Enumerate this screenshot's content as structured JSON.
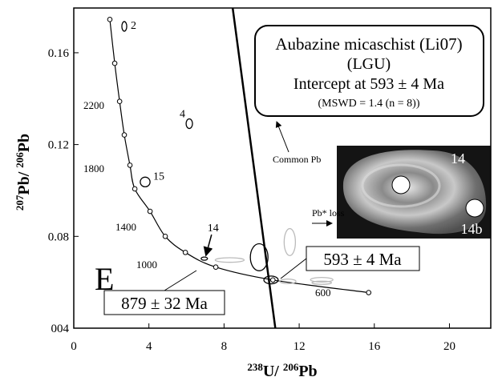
{
  "chart_data": {
    "type": "concordia",
    "xlim": [
      0,
      22.2
    ],
    "ylim": [
      0.04,
      0.1795
    ],
    "xticks": [
      0,
      4,
      8,
      12,
      16,
      20
    ],
    "yticks": [
      {
        "value": 0.04,
        "label": "004"
      },
      0.08,
      0.12,
      0.16
    ],
    "x_label": [
      "238",
      "U/ ",
      "206",
      "Pb"
    ],
    "y_label": [
      "207",
      "Pb/ ",
      "206",
      "Pb"
    ],
    "concordia": {
      "x": [
        1.92,
        2.18,
        2.44,
        2.69,
        2.99,
        3.25,
        4.06,
        4.87,
        5.94,
        7.56,
        10.6,
        15.7
      ],
      "y": [
        0.1745,
        0.1554,
        0.1388,
        0.1242,
        0.111,
        0.1007,
        0.0909,
        0.08,
        0.073,
        0.0666,
        0.061,
        0.0555
      ]
    },
    "concordia_labels": [
      "2200",
      "1800",
      "1400",
      "1000",
      "600"
    ],
    "discordia": {
      "x": [
        8.46,
        10.73
      ],
      "y": [
        0.1795,
        0.04
      ]
    },
    "ellipses": [
      {
        "label": "2",
        "x": 2.69,
        "y": 0.1715,
        "x_err": 0.13,
        "y_err": 0.0021,
        "color": "#000000"
      },
      {
        "label": "4",
        "x": 6.15,
        "y": 0.1291,
        "x_err": 0.17,
        "y_err": 0.0021,
        "color": "#000000"
      },
      {
        "label": "15",
        "x": 3.8,
        "y": 0.1037,
        "x_err": 0.26,
        "y_err": 0.0021,
        "color": "#000000"
      },
      {
        "label": "14",
        "x": 6.95,
        "y": 0.0703,
        "x_err": 0.17,
        "y_err": 0.0007,
        "color": "#000000"
      },
      {
        "label": null,
        "x": 9.87,
        "y": 0.0709,
        "x_err": 0.47,
        "y_err": 0.0059,
        "color": "#000000"
      },
      {
        "label": null,
        "x": 11.5,
        "y": 0.0775,
        "x_err": 0.3,
        "y_err": 0.0059,
        "color": "#bbbbbb"
      },
      {
        "label": null,
        "x": 8.3,
        "y": 0.0697,
        "x_err": 0.77,
        "y_err": 0.001,
        "color": "#bbbbbb"
      },
      {
        "label": null,
        "x": 10.5,
        "y": 0.061,
        "x_err": 0.38,
        "y_err": 0.0017,
        "color": "#000000"
      },
      {
        "label": null,
        "x": 11.4,
        "y": 0.0604,
        "x_err": 0.43,
        "y_err": 0.001,
        "color": "#bbbbbb"
      },
      {
        "label": null,
        "x": 13.2,
        "y": 0.0611,
        "x_err": 0.6,
        "y_err": 0.001,
        "color": "#bbbbbb"
      },
      {
        "label": null,
        "x": 13.2,
        "y": 0.0598,
        "x_err": 0.52,
        "y_err": 0.0007,
        "color": "#bbbbbb"
      }
    ],
    "info_box": [
      "Aubazine micaschist (Li07)",
      "(LGU)",
      "Intercept at 593 ± 4 Ma",
      "(MSWD = 1.4 (n = 8))"
    ],
    "lower_intercept": "593 ± 4 Ma",
    "upper_intercept": "879 ± 32 Ma",
    "common_pb": "Common Pb",
    "pb_loss": "Pb* loss",
    "panel": "E",
    "inset_labels": [
      "14",
      "14b"
    ]
  }
}
